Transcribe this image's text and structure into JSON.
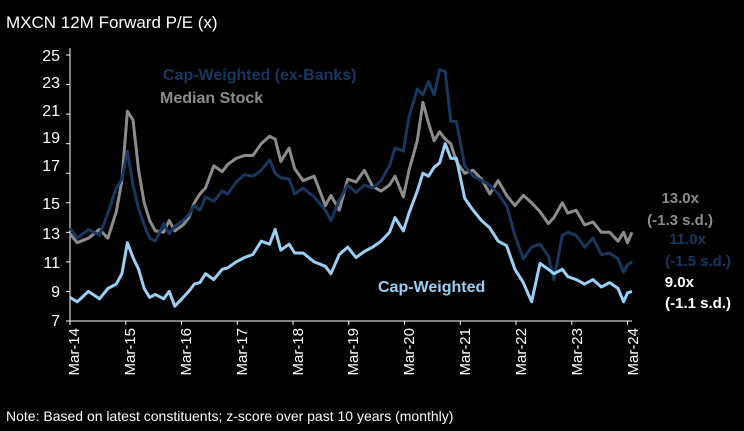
{
  "chart_data": {
    "type": "line",
    "title": "MXCN  12M Forward P/E (x)",
    "ylim": [
      7,
      25
    ],
    "yticks": [
      "25",
      "23",
      "21",
      "19",
      "17",
      "15",
      "13",
      "11",
      "9",
      "7"
    ],
    "ytick_values": [
      25,
      23,
      21,
      19,
      17,
      15,
      13,
      11,
      9,
      7
    ],
    "x_categories": [
      "Mar-14",
      "Mar-15",
      "Mar-16",
      "Mar-17",
      "Mar-18",
      "Mar-19",
      "Mar-20",
      "Mar-21",
      "Mar-22",
      "Mar-23",
      "Mar-24"
    ],
    "xlim": [
      2014.17,
      2024.25
    ],
    "note": "Note: Based on latest constituents; z-score over past 10 years (monthly)",
    "series": [
      {
        "name": "Median Stock",
        "label": "Median Stock",
        "color": "#8c8c8c",
        "points": [
          [
            2014.17,
            12.9
          ],
          [
            2014.3,
            12.3
          ],
          [
            2014.5,
            12.6
          ],
          [
            2014.7,
            13.2
          ],
          [
            2014.85,
            12.6
          ],
          [
            2015.0,
            14.4
          ],
          [
            2015.1,
            16.5
          ],
          [
            2015.2,
            21.2
          ],
          [
            2015.3,
            20.6
          ],
          [
            2015.4,
            17.2
          ],
          [
            2015.5,
            15.0
          ],
          [
            2015.6,
            13.8
          ],
          [
            2015.7,
            13.1
          ],
          [
            2015.85,
            13.0
          ],
          [
            2015.95,
            13.8
          ],
          [
            2016.05,
            13.1
          ],
          [
            2016.2,
            13.5
          ],
          [
            2016.3,
            14.0
          ],
          [
            2016.4,
            15.0
          ],
          [
            2016.5,
            15.6
          ],
          [
            2016.6,
            16.0
          ],
          [
            2016.75,
            17.5
          ],
          [
            2016.9,
            17.1
          ],
          [
            2017.0,
            17.6
          ],
          [
            2017.15,
            18.0
          ],
          [
            2017.3,
            18.2
          ],
          [
            2017.45,
            18.2
          ],
          [
            2017.6,
            19.0
          ],
          [
            2017.75,
            19.5
          ],
          [
            2017.85,
            19.3
          ],
          [
            2017.95,
            17.8
          ],
          [
            2018.1,
            18.7
          ],
          [
            2018.2,
            17.3
          ],
          [
            2018.35,
            16.5
          ],
          [
            2018.55,
            16.8
          ],
          [
            2018.75,
            14.8
          ],
          [
            2018.85,
            15.5
          ],
          [
            2019.0,
            14.5
          ],
          [
            2019.15,
            16.6
          ],
          [
            2019.3,
            16.4
          ],
          [
            2019.45,
            17.2
          ],
          [
            2019.6,
            16.1
          ],
          [
            2019.75,
            15.8
          ],
          [
            2019.9,
            16.2
          ],
          [
            2020.0,
            16.8
          ],
          [
            2020.15,
            15.4
          ],
          [
            2020.25,
            17.2
          ],
          [
            2020.4,
            19.2
          ],
          [
            2020.5,
            21.8
          ],
          [
            2020.6,
            20.4
          ],
          [
            2020.7,
            19.2
          ],
          [
            2020.8,
            19.8
          ],
          [
            2020.9,
            19.3
          ],
          [
            2021.0,
            19.0
          ],
          [
            2021.1,
            17.8
          ],
          [
            2021.25,
            17.0
          ],
          [
            2021.4,
            17.2
          ],
          [
            2021.55,
            16.6
          ],
          [
            2021.7,
            15.6
          ],
          [
            2021.85,
            16.5
          ],
          [
            2022.0,
            15.5
          ],
          [
            2022.15,
            14.8
          ],
          [
            2022.3,
            15.5
          ],
          [
            2022.45,
            15.0
          ],
          [
            2022.6,
            14.4
          ],
          [
            2022.75,
            13.6
          ],
          [
            2022.85,
            14.0
          ],
          [
            2023.0,
            15.0
          ],
          [
            2023.1,
            14.3
          ],
          [
            2023.25,
            14.5
          ],
          [
            2023.4,
            13.5
          ],
          [
            2023.55,
            13.7
          ],
          [
            2023.7,
            13.0
          ],
          [
            2023.85,
            13.0
          ],
          [
            2024.0,
            12.4
          ],
          [
            2024.1,
            13.0
          ],
          [
            2024.17,
            12.3
          ],
          [
            2024.25,
            13.0
          ]
        ]
      },
      {
        "name": "Cap-Weighted (ex-Banks)",
        "label": "Cap-Weighted (ex-Banks)",
        "color": "#17375e",
        "points": [
          [
            2014.17,
            13.3
          ],
          [
            2014.3,
            12.6
          ],
          [
            2014.5,
            13.2
          ],
          [
            2014.7,
            12.8
          ],
          [
            2014.85,
            14.3
          ],
          [
            2015.0,
            16.0
          ],
          [
            2015.1,
            16.6
          ],
          [
            2015.2,
            18.5
          ],
          [
            2015.3,
            16.2
          ],
          [
            2015.4,
            14.6
          ],
          [
            2015.5,
            13.5
          ],
          [
            2015.6,
            12.6
          ],
          [
            2015.7,
            12.4
          ],
          [
            2015.85,
            13.6
          ],
          [
            2015.95,
            12.9
          ],
          [
            2016.05,
            13.4
          ],
          [
            2016.2,
            13.8
          ],
          [
            2016.3,
            14.2
          ],
          [
            2016.4,
            14.8
          ],
          [
            2016.5,
            14.5
          ],
          [
            2016.6,
            15.4
          ],
          [
            2016.75,
            15.1
          ],
          [
            2016.9,
            15.8
          ],
          [
            2017.0,
            15.6
          ],
          [
            2017.15,
            16.4
          ],
          [
            2017.3,
            16.9
          ],
          [
            2017.45,
            16.8
          ],
          [
            2017.6,
            17.2
          ],
          [
            2017.75,
            17.9
          ],
          [
            2017.85,
            17.0
          ],
          [
            2017.95,
            16.7
          ],
          [
            2018.1,
            16.6
          ],
          [
            2018.2,
            15.6
          ],
          [
            2018.35,
            16.0
          ],
          [
            2018.55,
            15.4
          ],
          [
            2018.75,
            14.5
          ],
          [
            2018.85,
            13.8
          ],
          [
            2019.0,
            15.2
          ],
          [
            2019.15,
            16.2
          ],
          [
            2019.3,
            15.7
          ],
          [
            2019.45,
            16.2
          ],
          [
            2019.6,
            16.0
          ],
          [
            2019.75,
            16.5
          ],
          [
            2019.9,
            17.5
          ],
          [
            2020.0,
            18.7
          ],
          [
            2020.15,
            18.5
          ],
          [
            2020.25,
            20.8
          ],
          [
            2020.4,
            22.7
          ],
          [
            2020.5,
            22.3
          ],
          [
            2020.6,
            23.2
          ],
          [
            2020.7,
            22.3
          ],
          [
            2020.8,
            24.0
          ],
          [
            2020.9,
            23.9
          ],
          [
            2021.0,
            20.5
          ],
          [
            2021.1,
            20.5
          ],
          [
            2021.25,
            17.5
          ],
          [
            2021.4,
            16.8
          ],
          [
            2021.55,
            16.5
          ],
          [
            2021.7,
            16.2
          ],
          [
            2021.85,
            15.6
          ],
          [
            2022.0,
            14.8
          ],
          [
            2022.15,
            12.8
          ],
          [
            2022.3,
            11.2
          ],
          [
            2022.45,
            12.0
          ],
          [
            2022.6,
            12.2
          ],
          [
            2022.75,
            11.4
          ],
          [
            2022.85,
            9.8
          ],
          [
            2023.0,
            12.8
          ],
          [
            2023.1,
            13.0
          ],
          [
            2023.25,
            12.8
          ],
          [
            2023.4,
            12.0
          ],
          [
            2023.55,
            12.6
          ],
          [
            2023.7,
            11.5
          ],
          [
            2023.85,
            11.6
          ],
          [
            2024.0,
            11.2
          ],
          [
            2024.1,
            10.3
          ],
          [
            2024.17,
            10.8
          ],
          [
            2024.25,
            11.0
          ]
        ]
      },
      {
        "name": "Cap-Weighted",
        "label": "Cap-Weighted",
        "color": "#9ad0f5",
        "points": [
          [
            2014.17,
            8.6
          ],
          [
            2014.3,
            8.3
          ],
          [
            2014.5,
            9.0
          ],
          [
            2014.7,
            8.5
          ],
          [
            2014.85,
            9.2
          ],
          [
            2015.0,
            9.5
          ],
          [
            2015.1,
            10.2
          ],
          [
            2015.2,
            12.3
          ],
          [
            2015.3,
            11.3
          ],
          [
            2015.4,
            10.5
          ],
          [
            2015.5,
            9.2
          ],
          [
            2015.6,
            8.6
          ],
          [
            2015.7,
            8.8
          ],
          [
            2015.85,
            8.5
          ],
          [
            2015.95,
            9.0
          ],
          [
            2016.05,
            8.0
          ],
          [
            2016.2,
            8.6
          ],
          [
            2016.3,
            9.0
          ],
          [
            2016.4,
            9.5
          ],
          [
            2016.5,
            9.6
          ],
          [
            2016.6,
            10.2
          ],
          [
            2016.75,
            9.8
          ],
          [
            2016.9,
            10.5
          ],
          [
            2017.0,
            10.6
          ],
          [
            2017.15,
            11.0
          ],
          [
            2017.3,
            11.3
          ],
          [
            2017.45,
            11.5
          ],
          [
            2017.6,
            12.4
          ],
          [
            2017.75,
            12.2
          ],
          [
            2017.85,
            13.2
          ],
          [
            2017.95,
            11.8
          ],
          [
            2018.1,
            12.2
          ],
          [
            2018.2,
            11.6
          ],
          [
            2018.35,
            11.6
          ],
          [
            2018.55,
            11.0
          ],
          [
            2018.75,
            10.7
          ],
          [
            2018.85,
            10.2
          ],
          [
            2019.0,
            11.5
          ],
          [
            2019.15,
            12.0
          ],
          [
            2019.3,
            11.3
          ],
          [
            2019.45,
            11.7
          ],
          [
            2019.6,
            12.0
          ],
          [
            2019.75,
            12.4
          ],
          [
            2019.9,
            13.0
          ],
          [
            2020.0,
            14.0
          ],
          [
            2020.15,
            13.1
          ],
          [
            2020.25,
            14.3
          ],
          [
            2020.4,
            15.8
          ],
          [
            2020.5,
            17.0
          ],
          [
            2020.6,
            16.8
          ],
          [
            2020.7,
            17.4
          ],
          [
            2020.8,
            17.7
          ],
          [
            2020.9,
            19.0
          ],
          [
            2021.0,
            18.0
          ],
          [
            2021.1,
            18.0
          ],
          [
            2021.25,
            15.3
          ],
          [
            2021.4,
            14.5
          ],
          [
            2021.55,
            13.8
          ],
          [
            2021.7,
            13.3
          ],
          [
            2021.85,
            12.4
          ],
          [
            2022.0,
            12.1
          ],
          [
            2022.15,
            10.5
          ],
          [
            2022.3,
            9.6
          ],
          [
            2022.45,
            8.3
          ],
          [
            2022.6,
            10.9
          ],
          [
            2022.75,
            10.5
          ],
          [
            2022.85,
            10.2
          ],
          [
            2023.0,
            10.5
          ],
          [
            2023.1,
            10.0
          ],
          [
            2023.25,
            9.8
          ],
          [
            2023.4,
            9.5
          ],
          [
            2023.55,
            9.8
          ],
          [
            2023.7,
            9.3
          ],
          [
            2023.85,
            9.6
          ],
          [
            2024.0,
            9.2
          ],
          [
            2024.1,
            8.3
          ],
          [
            2024.17,
            8.9
          ],
          [
            2024.25,
            9.0
          ]
        ]
      }
    ],
    "annotations": [
      {
        "key": "median_value",
        "text": "13.0x",
        "color": "#8c8c8c"
      },
      {
        "key": "median_z",
        "text": "(-1.3 s.d.)",
        "color": "#8c8c8c"
      },
      {
        "key": "exbanks_value",
        "text": "11.0x",
        "color": "#17375e"
      },
      {
        "key": "exbanks_z",
        "text": "(-1.5 s.d.)",
        "color": "#17375e"
      },
      {
        "key": "cap_value",
        "text": "9.0x",
        "color": "#ffffff"
      },
      {
        "key": "cap_z",
        "text": "(-1.1 s.d.)",
        "color": "#ffffff"
      }
    ]
  }
}
